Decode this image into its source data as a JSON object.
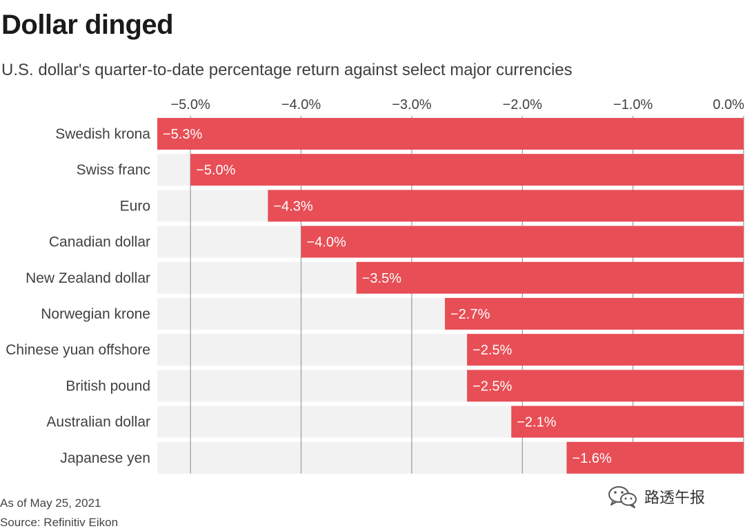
{
  "header": {
    "title": "Dollar dinged",
    "subtitle": "U.S. dollar's quarter-to-date percentage return against select major currencies"
  },
  "footer": {
    "date_note": "As of May 25, 2021",
    "source": "Source: Refinitiv Eikon"
  },
  "watermark": {
    "text": "路透午报",
    "icon": "wechat-icon"
  },
  "colors": {
    "bar": "#E84E55",
    "track": "#F2F2F2",
    "gridline": "#999999",
    "label_inside": "#ffffff",
    "text": "#404040"
  },
  "chart_data": {
    "type": "bar",
    "orientation": "horizontal",
    "title": "Dollar dinged",
    "subtitle": "U.S. dollar's quarter-to-date percentage return against select major currencies",
    "categories": [
      "Swedish krona",
      "Swiss franc",
      "Euro",
      "Canadian dollar",
      "New Zealand dollar",
      "Norwegian krone",
      "Chinese yuan offshore",
      "British pound",
      "Australian dollar",
      "Japanese yen"
    ],
    "values": [
      -5.3,
      -5.0,
      -4.3,
      -4.0,
      -3.5,
      -2.7,
      -2.5,
      -2.5,
      -2.1,
      -1.6
    ],
    "data_labels": [
      "−5.3%",
      "−5.0%",
      "−4.3%",
      "−4.0%",
      "−3.5%",
      "−2.7%",
      "−2.5%",
      "−2.5%",
      "−2.1%",
      "−1.6%"
    ],
    "xlim": [
      -5.3,
      0
    ],
    "x_ticks": [
      -5,
      -4,
      -3,
      -2,
      -1,
      0
    ],
    "x_tick_labels": [
      "−5.0%",
      "−4.0%",
      "−3.0%",
      "−2.0%",
      "−1.0%",
      "0.0%"
    ],
    "axis_position": "top",
    "grid": true,
    "legend": "none",
    "unit": "%"
  }
}
